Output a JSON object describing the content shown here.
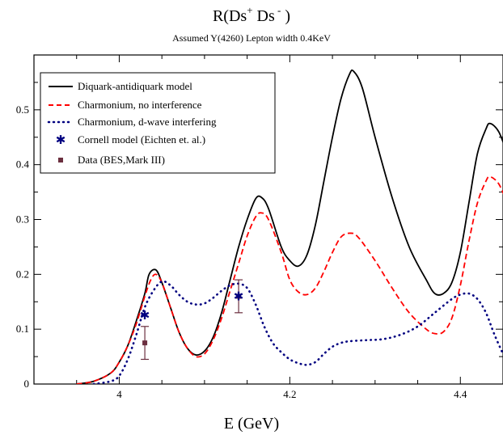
{
  "chart_data": {
    "type": "line",
    "title_main": "R(Ds",
    "title_sup1": "+",
    "title_mid": "  Ds",
    "title_sup2": " -",
    "title_end": " )",
    "subtitle": "Assumed Y(4260) Lepton width 0.4KeV",
    "xlabel": "E (GeV)",
    "ylabel": "",
    "xlim": [
      3.9,
      4.45
    ],
    "ylim": [
      0,
      0.6
    ],
    "x_ticks": [
      4.0,
      4.2,
      4.4
    ],
    "x_tick_labels": [
      "4",
      "4.2",
      "4.4"
    ],
    "y_ticks": [
      0,
      0.1,
      0.2,
      0.3,
      0.4,
      0.5
    ],
    "y_tick_labels": [
      "0",
      "0.1",
      "0.2",
      "0.3",
      "0.4",
      "0.5"
    ],
    "legend_position": "top-left",
    "series": [
      {
        "name": "Diquark-antidiquark model",
        "style": "solid",
        "color": "#000000",
        "points": [
          [
            3.95,
            0.0
          ],
          [
            3.97,
            0.005
          ],
          [
            3.99,
            0.02
          ],
          [
            4.0,
            0.04
          ],
          [
            4.01,
            0.07
          ],
          [
            4.02,
            0.115
          ],
          [
            4.03,
            0.165
          ],
          [
            4.035,
            0.2
          ],
          [
            4.043,
            0.208
          ],
          [
            4.05,
            0.185
          ],
          [
            4.06,
            0.14
          ],
          [
            4.07,
            0.095
          ],
          [
            4.08,
            0.065
          ],
          [
            4.09,
            0.053
          ],
          [
            4.1,
            0.06
          ],
          [
            4.11,
            0.085
          ],
          [
            4.12,
            0.13
          ],
          [
            4.13,
            0.19
          ],
          [
            4.14,
            0.25
          ],
          [
            4.15,
            0.3
          ],
          [
            4.16,
            0.338
          ],
          [
            4.167,
            0.34
          ],
          [
            4.175,
            0.32
          ],
          [
            4.19,
            0.25
          ],
          [
            4.2,
            0.225
          ],
          [
            4.21,
            0.215
          ],
          [
            4.22,
            0.235
          ],
          [
            4.23,
            0.29
          ],
          [
            4.24,
            0.37
          ],
          [
            4.25,
            0.45
          ],
          [
            4.26,
            0.52
          ],
          [
            4.27,
            0.565
          ],
          [
            4.275,
            0.57
          ],
          [
            4.285,
            0.54
          ],
          [
            4.3,
            0.45
          ],
          [
            4.32,
            0.34
          ],
          [
            4.34,
            0.25
          ],
          [
            4.36,
            0.19
          ],
          [
            4.37,
            0.165
          ],
          [
            4.38,
            0.165
          ],
          [
            4.39,
            0.185
          ],
          [
            4.4,
            0.24
          ],
          [
            4.41,
            0.33
          ],
          [
            4.42,
            0.42
          ],
          [
            4.43,
            0.465
          ],
          [
            4.435,
            0.475
          ],
          [
            4.445,
            0.46
          ],
          [
            4.455,
            0.42
          ]
        ]
      },
      {
        "name": "Charmonium, no interference",
        "style": "dashed",
        "color": "#ff0000",
        "points": [
          [
            3.95,
            0.0
          ],
          [
            3.97,
            0.005
          ],
          [
            3.99,
            0.02
          ],
          [
            4.0,
            0.04
          ],
          [
            4.01,
            0.07
          ],
          [
            4.02,
            0.11
          ],
          [
            4.03,
            0.16
          ],
          [
            4.037,
            0.19
          ],
          [
            4.043,
            0.2
          ],
          [
            4.05,
            0.185
          ],
          [
            4.06,
            0.14
          ],
          [
            4.07,
            0.095
          ],
          [
            4.08,
            0.065
          ],
          [
            4.09,
            0.05
          ],
          [
            4.1,
            0.055
          ],
          [
            4.11,
            0.08
          ],
          [
            4.12,
            0.12
          ],
          [
            4.13,
            0.17
          ],
          [
            4.14,
            0.22
          ],
          [
            4.15,
            0.27
          ],
          [
            4.16,
            0.305
          ],
          [
            4.167,
            0.312
          ],
          [
            4.175,
            0.3
          ],
          [
            4.19,
            0.24
          ],
          [
            4.2,
            0.19
          ],
          [
            4.21,
            0.168
          ],
          [
            4.22,
            0.163
          ],
          [
            4.23,
            0.175
          ],
          [
            4.24,
            0.205
          ],
          [
            4.25,
            0.24
          ],
          [
            4.26,
            0.268
          ],
          [
            4.27,
            0.275
          ],
          [
            4.28,
            0.268
          ],
          [
            4.3,
            0.225
          ],
          [
            4.32,
            0.175
          ],
          [
            4.34,
            0.13
          ],
          [
            4.36,
            0.1
          ],
          [
            4.37,
            0.092
          ],
          [
            4.38,
            0.095
          ],
          [
            4.39,
            0.12
          ],
          [
            4.4,
            0.18
          ],
          [
            4.41,
            0.26
          ],
          [
            4.42,
            0.33
          ],
          [
            4.43,
            0.37
          ],
          [
            4.435,
            0.378
          ],
          [
            4.445,
            0.365
          ],
          [
            4.455,
            0.33
          ]
        ]
      },
      {
        "name": "Charmonium, d-wave interfering",
        "style": "dotted",
        "color": "#000080",
        "points": [
          [
            3.97,
            0.0
          ],
          [
            3.99,
            0.005
          ],
          [
            4.0,
            0.015
          ],
          [
            4.01,
            0.045
          ],
          [
            4.02,
            0.09
          ],
          [
            4.03,
            0.14
          ],
          [
            4.04,
            0.17
          ],
          [
            4.05,
            0.187
          ],
          [
            4.06,
            0.18
          ],
          [
            4.07,
            0.163
          ],
          [
            4.08,
            0.15
          ],
          [
            4.09,
            0.145
          ],
          [
            4.1,
            0.147
          ],
          [
            4.11,
            0.157
          ],
          [
            4.12,
            0.17
          ],
          [
            4.13,
            0.18
          ],
          [
            4.14,
            0.183
          ],
          [
            4.15,
            0.175
          ],
          [
            4.16,
            0.145
          ],
          [
            4.17,
            0.105
          ],
          [
            4.18,
            0.075
          ],
          [
            4.19,
            0.058
          ],
          [
            4.2,
            0.045
          ],
          [
            4.21,
            0.038
          ],
          [
            4.22,
            0.035
          ],
          [
            4.23,
            0.04
          ],
          [
            4.24,
            0.055
          ],
          [
            4.25,
            0.068
          ],
          [
            4.26,
            0.075
          ],
          [
            4.27,
            0.078
          ],
          [
            4.29,
            0.08
          ],
          [
            4.31,
            0.082
          ],
          [
            4.33,
            0.09
          ],
          [
            4.35,
            0.105
          ],
          [
            4.37,
            0.13
          ],
          [
            4.39,
            0.155
          ],
          [
            4.4,
            0.163
          ],
          [
            4.41,
            0.165
          ],
          [
            4.42,
            0.155
          ],
          [
            4.43,
            0.13
          ],
          [
            4.44,
            0.09
          ],
          [
            4.45,
            0.055
          ]
        ]
      },
      {
        "name": "Cornell model (Eichten et. al.)",
        "style": "markers-star",
        "color": "#000080",
        "points": [
          [
            4.03,
            0.125
          ],
          [
            4.14,
            0.16
          ]
        ]
      },
      {
        "name": "Data (BES,Mark III)",
        "style": "markers-square-errorbar",
        "color": "#6b2f3f",
        "points": [
          [
            4.03,
            0.075,
            0.03
          ],
          [
            4.14,
            0.16,
            0.03
          ]
        ]
      }
    ]
  }
}
